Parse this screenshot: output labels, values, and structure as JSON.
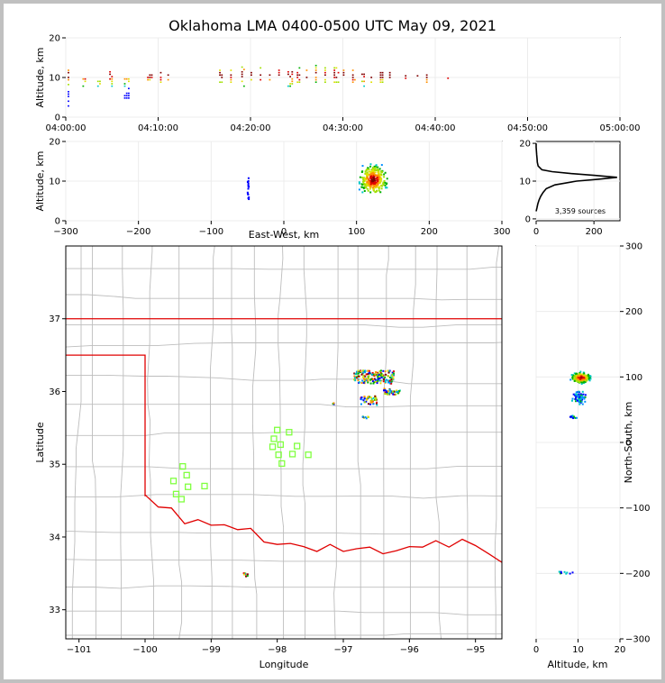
{
  "title": "Oklahoma LMA 0400-0500 UTC May 09, 2021",
  "chart_data": [
    {
      "panel": "altitude-time",
      "type": "scatter",
      "ylabel": "Altitude, km",
      "xlim": [
        "04:00:00",
        "05:00:00"
      ],
      "ylim": [
        0,
        20
      ],
      "xticks": [
        "04:00:00",
        "04:10:00",
        "04:20:00",
        "04:30:00",
        "04:40:00",
        "04:50:00",
        "05:00:00"
      ],
      "yticks": [
        0,
        10,
        20
      ],
      "activity_minutes": [
        {
          "t": 0.2,
          "alt_min": 3,
          "alt_max": 12
        },
        {
          "t": 1.8,
          "alt_min": 8,
          "alt_max": 11
        },
        {
          "t": 3.4,
          "alt_min": 8,
          "alt_max": 10
        },
        {
          "t": 4.7,
          "alt_min": 8,
          "alt_max": 12
        },
        {
          "t": 6.3,
          "alt_min": 5,
          "alt_max": 10
        },
        {
          "t": 8.8,
          "alt_min": 9,
          "alt_max": 11
        },
        {
          "t": 10.2,
          "alt_min": 9,
          "alt_max": 12
        },
        {
          "t": 11.0,
          "alt_min": 9,
          "alt_max": 11
        },
        {
          "t": 16.6,
          "alt_min": 9,
          "alt_max": 12
        },
        {
          "t": 17.8,
          "alt_min": 9,
          "alt_max": 12
        },
        {
          "t": 19.0,
          "alt_min": 8,
          "alt_max": 13
        },
        {
          "t": 20.0,
          "alt_min": 9,
          "alt_max": 13
        },
        {
          "t": 21.0,
          "alt_min": 9,
          "alt_max": 13
        },
        {
          "t": 22.0,
          "alt_min": 9,
          "alt_max": 13
        },
        {
          "t": 23.0,
          "alt_min": 9,
          "alt_max": 12
        },
        {
          "t": 24.0,
          "alt_min": 8,
          "alt_max": 12
        },
        {
          "t": 25.0,
          "alt_min": 9,
          "alt_max": 13
        },
        {
          "t": 26.0,
          "alt_min": 9,
          "alt_max": 13
        },
        {
          "t": 27.0,
          "alt_min": 9,
          "alt_max": 14
        },
        {
          "t": 28.0,
          "alt_min": 9,
          "alt_max": 13
        },
        {
          "t": 29.0,
          "alt_min": 9,
          "alt_max": 13
        },
        {
          "t": 30.0,
          "alt_min": 9,
          "alt_max": 12
        },
        {
          "t": 31.0,
          "alt_min": 9,
          "alt_max": 12
        },
        {
          "t": 32.0,
          "alt_min": 8,
          "alt_max": 12
        },
        {
          "t": 33.0,
          "alt_min": 9,
          "alt_max": 12
        },
        {
          "t": 34.0,
          "alt_min": 9,
          "alt_max": 12
        },
        {
          "t": 35.0,
          "alt_min": 9,
          "alt_max": 12
        },
        {
          "t": 36.5,
          "alt_min": 10,
          "alt_max": 11
        },
        {
          "t": 38.0,
          "alt_min": 10,
          "alt_max": 11
        },
        {
          "t": 39.0,
          "alt_min": 9,
          "alt_max": 11
        },
        {
          "t": 41.3,
          "alt_min": 10,
          "alt_max": 11
        }
      ]
    },
    {
      "panel": "altitude-ew",
      "type": "scatter",
      "xlabel": "East-West, km",
      "ylabel": "Altitude, km",
      "xlim": [
        -300,
        300
      ],
      "ylim": [
        0,
        20
      ],
      "xticks": [
        -300,
        -200,
        -100,
        0,
        100,
        200,
        300
      ],
      "yticks": [
        0,
        10,
        20
      ],
      "clusters": [
        {
          "x_center": -50,
          "x_spread": 1.5,
          "alt_min": 4,
          "alt_max": 11,
          "n": 14
        },
        {
          "x_center": 122,
          "x_spread": 13,
          "alt_center": 10.5,
          "alt_spread": 2.6,
          "n": 320
        }
      ]
    },
    {
      "panel": "altitude-histogram",
      "type": "line",
      "annotation": "3,359 sources",
      "xlim": [
        0,
        290
      ],
      "ylim": [
        -0.5,
        20.5
      ],
      "xticks": [
        0,
        200
      ],
      "yticks": [
        0,
        10,
        20
      ],
      "alt": [
        2,
        3,
        4,
        5,
        6,
        7,
        8,
        9,
        10,
        10.5,
        11,
        11.5,
        12,
        12.5,
        13,
        14,
        15,
        16,
        17,
        18,
        19,
        20
      ],
      "count": [
        0,
        3,
        6,
        10,
        16,
        24,
        35,
        65,
        140,
        215,
        280,
        205,
        120,
        55,
        20,
        7,
        4,
        3,
        2,
        1,
        0,
        0
      ]
    },
    {
      "panel": "plan-view-map",
      "type": "scatter",
      "xlabel": "Longitude",
      "ylabel": "Latitude",
      "xlim": [
        -101.2,
        -94.6
      ],
      "ylim": [
        32.6,
        38.0
      ],
      "xticks": [
        -101,
        -100,
        -99,
        -98,
        -97,
        -96,
        -95
      ],
      "yticks": [
        33,
        34,
        35,
        36,
        37
      ],
      "stations": [
        {
          "lon": -98.0,
          "lat": 35.47
        },
        {
          "lon": -97.82,
          "lat": 35.44
        },
        {
          "lon": -98.05,
          "lat": 35.35
        },
        {
          "lon": -97.95,
          "lat": 35.27
        },
        {
          "lon": -98.07,
          "lat": 35.24
        },
        {
          "lon": -97.7,
          "lat": 35.25
        },
        {
          "lon": -97.98,
          "lat": 35.13
        },
        {
          "lon": -97.77,
          "lat": 35.14
        },
        {
          "lon": -97.53,
          "lat": 35.13
        },
        {
          "lon": -97.93,
          "lat": 35.01
        },
        {
          "lon": -99.43,
          "lat": 34.97
        },
        {
          "lon": -99.37,
          "lat": 34.85
        },
        {
          "lon": -99.57,
          "lat": 34.77
        },
        {
          "lon": -99.35,
          "lat": 34.69
        },
        {
          "lon": -99.1,
          "lat": 34.7
        },
        {
          "lon": -99.53,
          "lat": 34.59
        },
        {
          "lon": -99.45,
          "lat": 34.52
        }
      ],
      "source_clusters": [
        {
          "lon_min": -96.85,
          "lon_max": -96.25,
          "lat_min": 36.12,
          "lat_max": 36.3,
          "n": 170
        },
        {
          "lon_min": -96.4,
          "lon_max": -96.15,
          "lat_min": 35.97,
          "lat_max": 36.05,
          "n": 40
        },
        {
          "lon_min": -96.75,
          "lon_max": -96.5,
          "lat_min": 35.82,
          "lat_max": 35.95,
          "n": 45
        },
        {
          "lon_min": -96.72,
          "lon_max": -96.62,
          "lat_min": 35.64,
          "lat_max": 35.67,
          "n": 8
        },
        {
          "lon_min": -97.2,
          "lon_max": -97.15,
          "lat_min": 35.83,
          "lat_max": 35.86,
          "n": 3
        },
        {
          "lon_min": -98.52,
          "lon_max": -98.46,
          "lat_min": 33.47,
          "lat_max": 33.52,
          "n": 8
        }
      ]
    },
    {
      "panel": "altitude-ns",
      "type": "scatter",
      "xlabel": "Altitude, km",
      "ylabel": "North-South, km",
      "xlim": [
        0,
        20
      ],
      "ylim": [
        -300,
        300
      ],
      "xticks": [
        0,
        10,
        20
      ],
      "yticks": [
        -300,
        -200,
        -100,
        0,
        100,
        200,
        300
      ],
      "clusters": [
        {
          "alt_center": 10.5,
          "alt_spread": 2.8,
          "y_center": 100,
          "y_spread": 6,
          "n": 220
        },
        {
          "alt_center": 10,
          "alt_spread": 2.5,
          "y_center": 70,
          "y_spread": 8,
          "n": 70
        },
        {
          "alt_center": 8.5,
          "alt_spread": 1.5,
          "y_center": 40,
          "y_spread": 2,
          "n": 12
        },
        {
          "alt_center": 7,
          "alt_spread": 3,
          "y_center": -198,
          "y_spread": 2,
          "n": 10
        }
      ]
    }
  ]
}
